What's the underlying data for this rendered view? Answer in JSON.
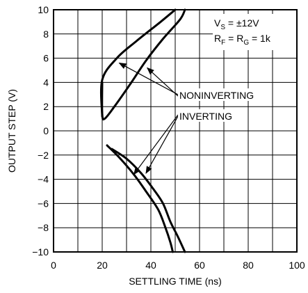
{
  "chart_data": {
    "type": "line",
    "xlabel": "SETTLING TIME (ns)",
    "ylabel": "OUTPUT STEP (V)",
    "xlim": [
      0,
      100
    ],
    "ylim": [
      -10,
      10
    ],
    "x_ticks": [
      0,
      20,
      40,
      60,
      80,
      100
    ],
    "y_ticks": [
      -10,
      -8,
      -6,
      -4,
      -2,
      0,
      2,
      4,
      6,
      8,
      10
    ],
    "grid": true,
    "conditions": {
      "line1_main": "V",
      "line1_sub": "S",
      "line1_rest": " = ±12V",
      "line2_r1": "R",
      "line2_r1_sub": "F",
      "line2_mid": " = R",
      "line2_r2_sub": "G",
      "line2_rest": " = 1k"
    },
    "annotations": [
      "NONINVERTING",
      "INVERTING"
    ],
    "series": [
      {
        "points": [
          [
            20,
            1.2
          ],
          [
            20,
            4.2
          ],
          [
            26,
            6
          ],
          [
            34,
            7.4
          ],
          [
            44,
            9
          ],
          [
            50,
            10
          ]
        ]
      },
      {
        "points": [
          [
            20,
            4
          ],
          [
            20,
            1.4
          ],
          [
            21,
            1
          ],
          [
            25,
            2
          ],
          [
            32,
            4
          ],
          [
            38,
            5.8
          ],
          [
            45,
            7.6
          ],
          [
            52,
            9.2
          ],
          [
            54,
            10
          ]
        ]
      },
      {
        "points": [
          [
            22,
            -1.2
          ],
          [
            27,
            -2.2
          ],
          [
            33,
            -3.6
          ],
          [
            38,
            -5
          ],
          [
            43,
            -6.5
          ],
          [
            46,
            -8
          ],
          [
            48,
            -9.2
          ],
          [
            49,
            -10
          ]
        ]
      },
      {
        "points": [
          [
            24,
            -1.5
          ],
          [
            30,
            -2.3
          ],
          [
            36,
            -3.5
          ],
          [
            41,
            -4.8
          ],
          [
            45,
            -6
          ],
          [
            48,
            -7.5
          ],
          [
            51,
            -8.7
          ],
          [
            54,
            -10
          ]
        ]
      }
    ]
  }
}
